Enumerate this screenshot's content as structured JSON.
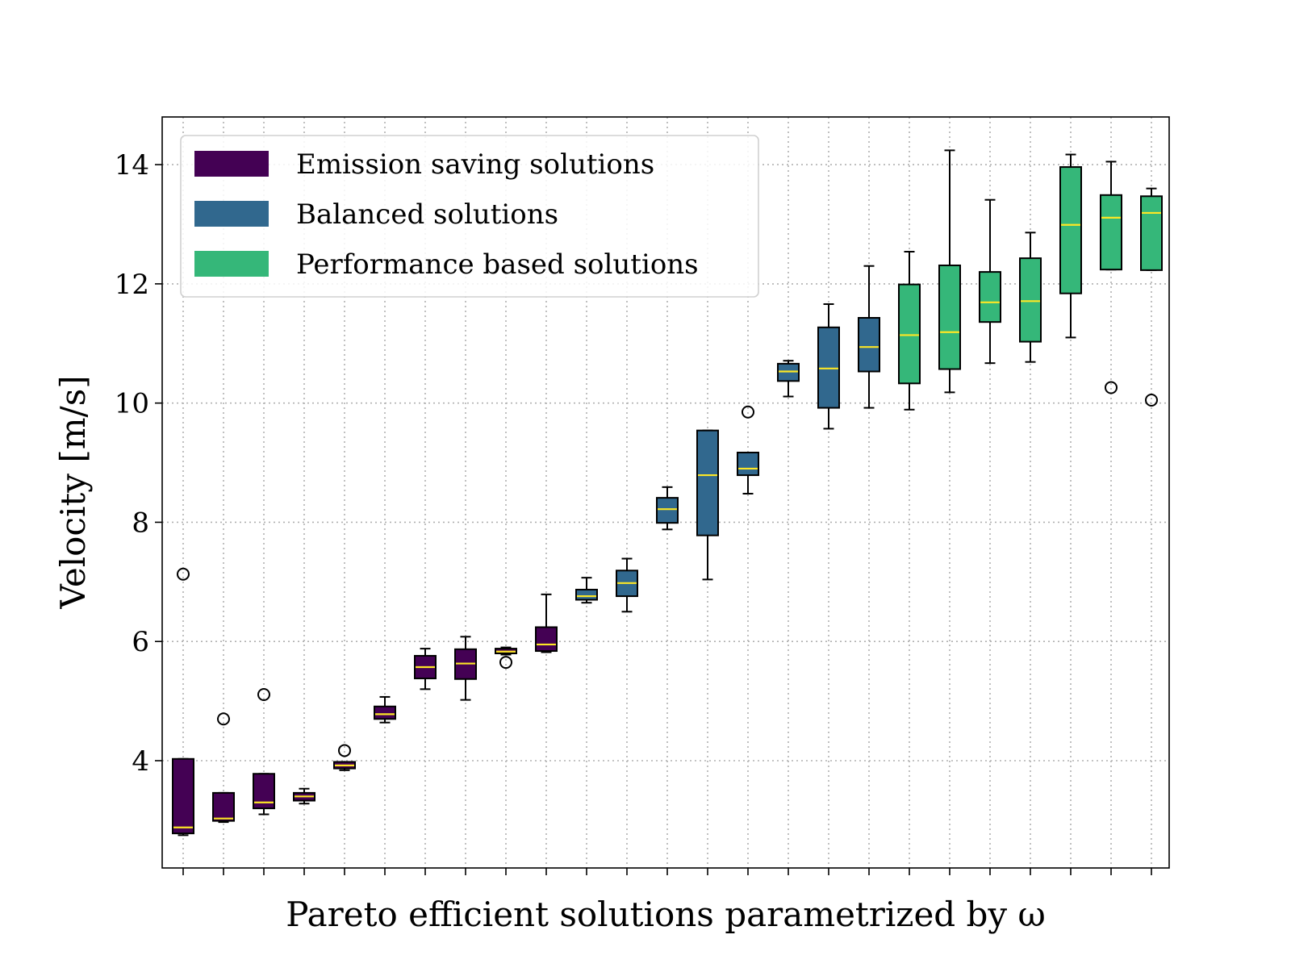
{
  "chart_data": {
    "type": "boxplot",
    "xlabel": "Pareto efficient solutions parametrized by ω",
    "ylabel": "Velocity [m/s]",
    "ylim": [
      2.2,
      14.8
    ],
    "yticks": [
      4,
      6,
      8,
      10,
      12,
      14
    ],
    "grid": true,
    "legend_position": "upper-left",
    "groups": [
      {
        "name": "Emission saving solutions",
        "color": "#440154"
      },
      {
        "name": "Balanced solutions",
        "color": "#31688e"
      },
      {
        "name": "Performance based solutions",
        "color": "#35b779"
      }
    ],
    "median_color": "#fde725",
    "boxes": [
      {
        "group": 0,
        "whislo": 2.75,
        "q1": 2.78,
        "med": 2.88,
        "q3": 4.03,
        "whishi": 4.03,
        "fliers": [
          7.13
        ]
      },
      {
        "group": 0,
        "whislo": 2.97,
        "q1": 2.99,
        "med": 3.03,
        "q3": 3.46,
        "whishi": 3.46,
        "fliers": [
          4.7
        ]
      },
      {
        "group": 0,
        "whislo": 3.1,
        "q1": 3.2,
        "med": 3.3,
        "q3": 3.78,
        "whishi": 3.78,
        "fliers": [
          5.11
        ]
      },
      {
        "group": 0,
        "whislo": 3.28,
        "q1": 3.33,
        "med": 3.4,
        "q3": 3.46,
        "whishi": 3.53,
        "fliers": []
      },
      {
        "group": 0,
        "whislo": 3.84,
        "q1": 3.87,
        "med": 3.92,
        "q3": 3.98,
        "whishi": 3.98,
        "fliers": [
          4.17
        ]
      },
      {
        "group": 0,
        "whislo": 4.64,
        "q1": 4.7,
        "med": 4.78,
        "q3": 4.91,
        "whishi": 5.07,
        "fliers": []
      },
      {
        "group": 0,
        "whislo": 5.2,
        "q1": 5.38,
        "med": 5.57,
        "q3": 5.76,
        "whishi": 5.88,
        "fliers": []
      },
      {
        "group": 0,
        "whislo": 5.02,
        "q1": 5.37,
        "med": 5.63,
        "q3": 5.87,
        "whishi": 6.08,
        "fliers": []
      },
      {
        "group": 0,
        "whislo": 5.78,
        "q1": 5.8,
        "med": 5.83,
        "q3": 5.88,
        "whishi": 5.9,
        "fliers": [
          5.65
        ]
      },
      {
        "group": 0,
        "whislo": 5.82,
        "q1": 5.84,
        "med": 5.95,
        "q3": 6.24,
        "whishi": 6.79,
        "fliers": []
      },
      {
        "group": 1,
        "whislo": 6.65,
        "q1": 6.7,
        "med": 6.76,
        "q3": 6.87,
        "whishi": 7.07,
        "fliers": []
      },
      {
        "group": 1,
        "whislo": 6.5,
        "q1": 6.76,
        "med": 6.98,
        "q3": 7.19,
        "whishi": 7.39,
        "fliers": []
      },
      {
        "group": 1,
        "whislo": 7.88,
        "q1": 7.99,
        "med": 8.22,
        "q3": 8.41,
        "whishi": 8.59,
        "fliers": []
      },
      {
        "group": 1,
        "whislo": 7.04,
        "q1": 7.78,
        "med": 8.79,
        "q3": 9.54,
        "whishi": 9.54,
        "fliers": []
      },
      {
        "group": 1,
        "whislo": 8.48,
        "q1": 8.79,
        "med": 8.9,
        "q3": 9.17,
        "whishi": 9.17,
        "fliers": [
          9.85
        ]
      },
      {
        "group": 1,
        "whislo": 10.11,
        "q1": 10.37,
        "med": 10.53,
        "q3": 10.66,
        "whishi": 10.71,
        "fliers": []
      },
      {
        "group": 1,
        "whislo": 9.57,
        "q1": 9.92,
        "med": 10.58,
        "q3": 11.27,
        "whishi": 11.66,
        "fliers": []
      },
      {
        "group": 1,
        "whislo": 9.92,
        "q1": 10.53,
        "med": 10.94,
        "q3": 11.43,
        "whishi": 12.3,
        "fliers": []
      },
      {
        "group": 2,
        "whislo": 9.89,
        "q1": 10.33,
        "med": 11.14,
        "q3": 11.99,
        "whishi": 12.54,
        "fliers": []
      },
      {
        "group": 2,
        "whislo": 10.18,
        "q1": 10.57,
        "med": 11.19,
        "q3": 12.31,
        "whishi": 14.24,
        "fliers": []
      },
      {
        "group": 2,
        "whislo": 10.67,
        "q1": 11.36,
        "med": 11.69,
        "q3": 12.2,
        "whishi": 13.41,
        "fliers": []
      },
      {
        "group": 2,
        "whislo": 10.69,
        "q1": 11.03,
        "med": 11.71,
        "q3": 12.43,
        "whishi": 12.86,
        "fliers": []
      },
      {
        "group": 2,
        "whislo": 11.1,
        "q1": 11.84,
        "med": 12.99,
        "q3": 13.96,
        "whishi": 14.17,
        "fliers": []
      },
      {
        "group": 2,
        "whislo": 12.24,
        "q1": 12.24,
        "med": 13.11,
        "q3": 13.49,
        "whishi": 14.05,
        "fliers": [
          10.26
        ]
      },
      {
        "group": 2,
        "whislo": 12.23,
        "q1": 12.23,
        "med": 13.19,
        "q3": 13.47,
        "whishi": 13.6,
        "fliers": [
          10.05
        ]
      }
    ]
  }
}
